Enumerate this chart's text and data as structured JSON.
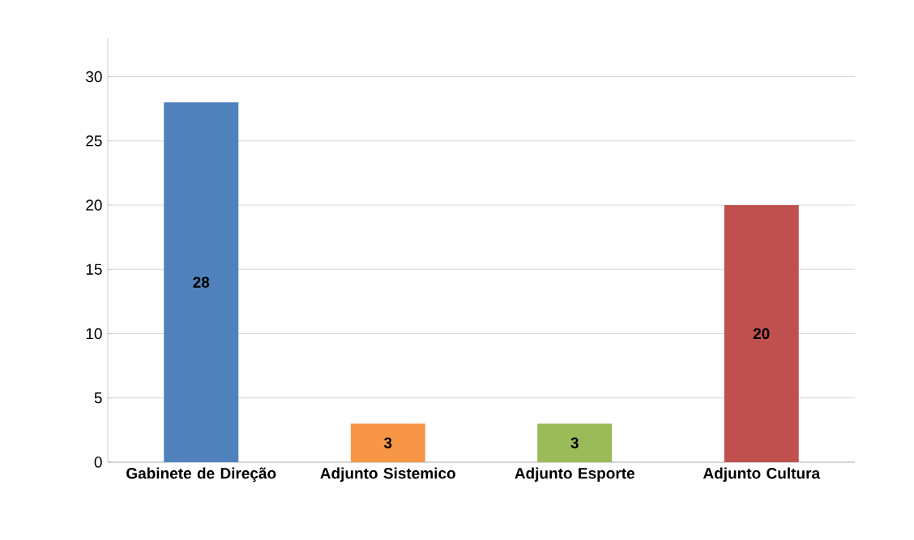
{
  "chart_data": {
    "type": "bar",
    "categories": [
      "Gabinete de Direção",
      "Adjunto Sistemico",
      "Adjunto Esporte",
      "Adjunto Cultura"
    ],
    "values": [
      28,
      3,
      3,
      20
    ],
    "colors": [
      "#4f81bd",
      "#f79646",
      "#9bbb59",
      "#c0504d"
    ],
    "ylim": [
      0,
      33
    ],
    "yticks": [
      0,
      5,
      10,
      15,
      20,
      25,
      30
    ],
    "grid": "y",
    "data_labels": true
  }
}
